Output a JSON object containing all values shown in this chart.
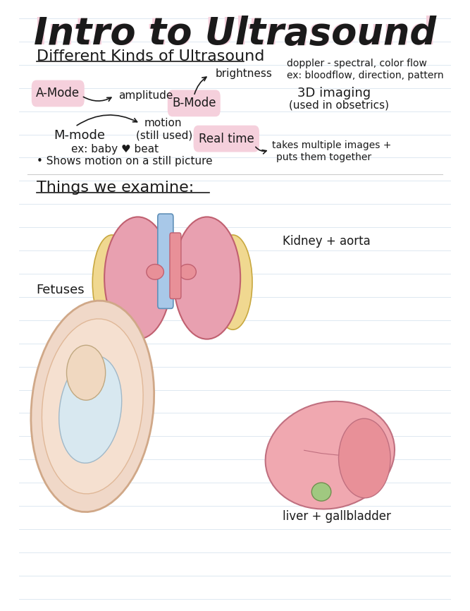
{
  "background_color": "#ffffff",
  "line_color": "#c8d8e8",
  "title": "Intro to Ultrasound",
  "title_color": "#1a1a1a",
  "title_shadow_color": "#f5d0dc",
  "title_font_size": 38,
  "section1_heading": "Different Kinds of Ultrasound",
  "section2_heading": "Things we examine:",
  "heading_font_size": 16
}
